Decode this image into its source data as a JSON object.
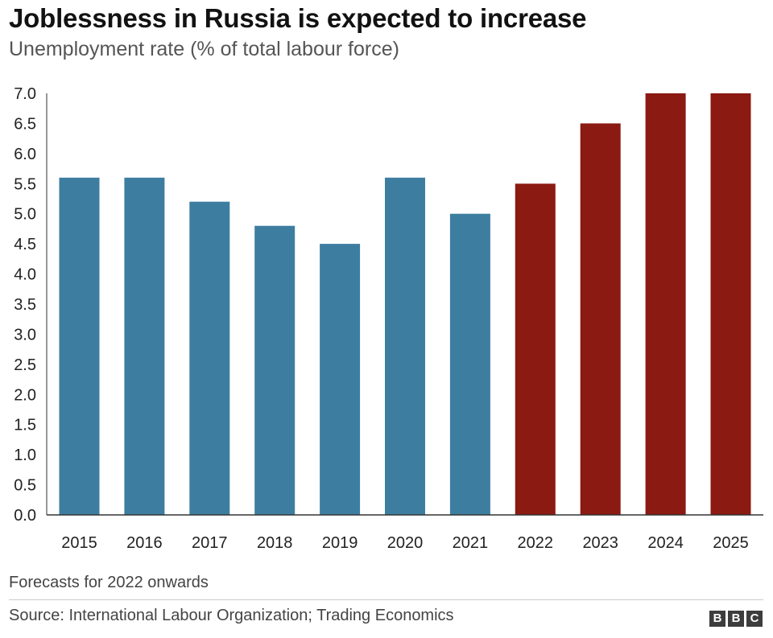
{
  "header": {
    "title": "Joblessness in Russia is expected to increase",
    "subtitle": "Unemployment rate (% of total labour force)"
  },
  "footer": {
    "note": "Forecasts for 2022 onwards",
    "source": "Source: International Labour Organization; Trading Economics",
    "logo_letters": [
      "B",
      "B",
      "C"
    ]
  },
  "colors": {
    "actual": "#3d7ea0",
    "forecast": "#8b1a12",
    "axis": "#333333",
    "tick_text": "#222222"
  },
  "chart_data": {
    "type": "bar",
    "title": "Joblessness in Russia is expected to increase",
    "subtitle": "Unemployment rate (% of total labour force)",
    "xlabel": "",
    "ylabel": "Unemployment rate (% of total labour force)",
    "categories": [
      "2015",
      "2016",
      "2017",
      "2018",
      "2019",
      "2020",
      "2021",
      "2022",
      "2023",
      "2024",
      "2025"
    ],
    "values": [
      5.6,
      5.6,
      5.2,
      4.8,
      4.5,
      5.6,
      5.0,
      5.5,
      6.5,
      7.0,
      7.0
    ],
    "is_forecast": [
      false,
      false,
      false,
      false,
      false,
      false,
      false,
      true,
      true,
      true,
      true
    ],
    "ylim": [
      0,
      7
    ],
    "yticks": [
      0,
      0.5,
      1,
      1.5,
      2,
      2.5,
      3,
      3.5,
      4,
      4.5,
      5,
      5.5,
      6,
      6.5,
      7
    ],
    "ytick_labels": [
      "0.0",
      "0.5",
      "1.0",
      "1.5",
      "2.0",
      "2.5",
      "3.0",
      "3.5",
      "4.0",
      "4.5",
      "5.0",
      "5.5",
      "6.0",
      "6.5",
      "7.0"
    ],
    "grid": false,
    "annotation": "Forecasts for 2022 onwards"
  }
}
